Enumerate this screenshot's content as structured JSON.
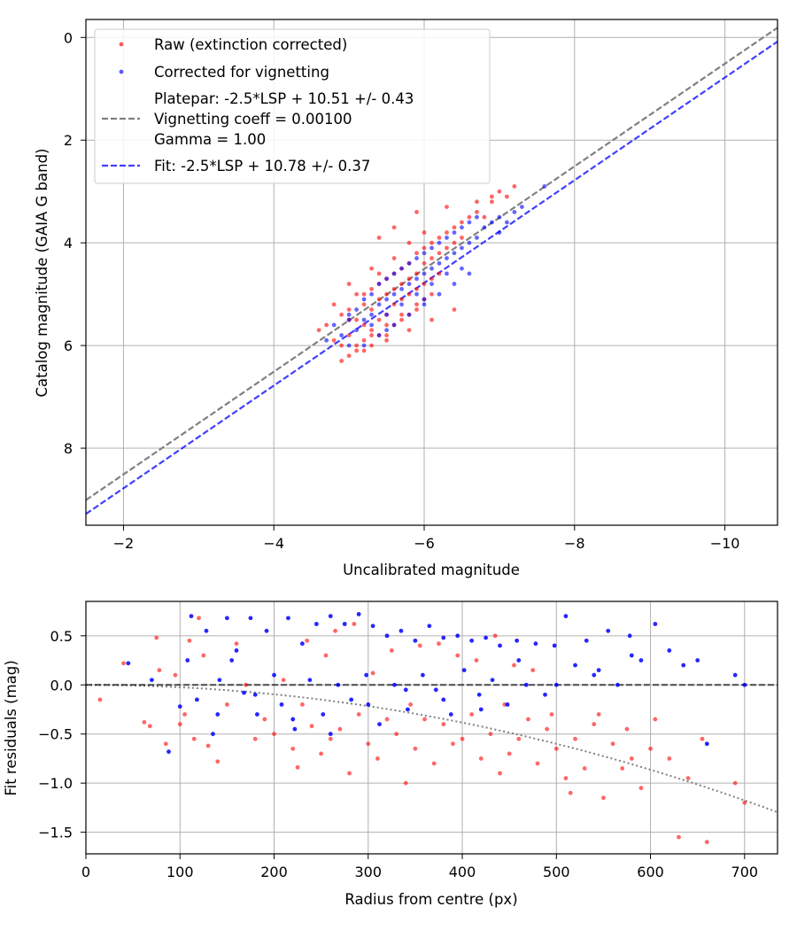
{
  "colors": {
    "raw": "#ff0000",
    "corrected": "#0000ff",
    "platepar_line": "#808080",
    "fit_line": "#0000ff",
    "grid": "#b0b0b0",
    "zero_line": "#000000",
    "model_curve": "#808080"
  },
  "chart_data": [
    {
      "type": "scatter",
      "xlabel": "Uncalibrated magnitude",
      "ylabel": "Catalog magnitude (GAIA G band)",
      "xlim": [
        -1.5,
        -10.7
      ],
      "ylim": [
        9.5,
        -0.35
      ],
      "x_inverted": true,
      "y_inverted": true,
      "grid": true,
      "legend_placement": "top-left",
      "xticks": [
        -2,
        -4,
        -6,
        -8,
        -10
      ],
      "xtick_labels": [
        "−2",
        "−4",
        "−6",
        "−8",
        "−10"
      ],
      "yticks": [
        0,
        2,
        4,
        6,
        8
      ],
      "ytick_labels": [
        "0",
        "2",
        "4",
        "6",
        "8"
      ],
      "legend": {
        "raw": "Raw (extinction corrected)",
        "corrected": "Corrected for vignetting",
        "platepar_line1": "Platepar: -2.5*LSP + 10.51 +/- 0.43",
        "platepar_line2": "Vignetting coeff = 0.00100",
        "platepar_line3": "Gamma = 1.00",
        "fit": "Fit: -2.5*LSP + 10.78 +/- 0.37"
      },
      "lines": [
        {
          "label": "Platepar",
          "slope": 1,
          "intercept": 10.51,
          "style": "dashed",
          "color": "#808080"
        },
        {
          "label": "Fit",
          "slope": 1,
          "intercept": 10.78,
          "style": "dashed",
          "color": "#0000ff"
        }
      ],
      "series": [
        {
          "name": "Raw (extinction corrected)",
          "color": "#ff0000",
          "x": [
            -4.6,
            -4.7,
            -4.8,
            -4.8,
            -4.9,
            -4.9,
            -5.0,
            -5.0,
            -5.0,
            -5.1,
            -5.1,
            -5.1,
            -5.2,
            -5.2,
            -5.2,
            -5.3,
            -5.3,
            -5.3,
            -5.3,
            -5.4,
            -5.4,
            -5.4,
            -5.4,
            -5.5,
            -5.5,
            -5.5,
            -5.5,
            -5.6,
            -5.6,
            -5.6,
            -5.6,
            -5.7,
            -5.7,
            -5.7,
            -5.7,
            -5.8,
            -5.8,
            -5.8,
            -5.8,
            -5.9,
            -5.9,
            -5.9,
            -5.9,
            -6.0,
            -6.0,
            -6.0,
            -6.0,
            -6.1,
            -6.1,
            -6.1,
            -6.2,
            -6.2,
            -6.2,
            -6.3,
            -6.3,
            -6.4,
            -6.4,
            -6.5,
            -6.5,
            -6.6,
            -6.7,
            -6.8,
            -6.9,
            -7.0,
            -7.1,
            -7.2,
            -5.0,
            -5.2,
            -5.4,
            -5.6,
            -5.8,
            -6.0,
            -5.1,
            -5.3,
            -5.5,
            -5.7,
            -5.9,
            -6.1,
            -4.9,
            -5.2,
            -5.5,
            -5.8,
            -6.1,
            -6.4,
            -5.9,
            -6.3,
            -6.7,
            -6.9,
            -5.4,
            -5.6,
            -5.0,
            -5.3
          ],
          "y": [
            5.7,
            5.6,
            5.2,
            5.9,
            5.4,
            6.0,
            5.3,
            5.8,
            6.2,
            5.0,
            5.5,
            6.1,
            5.2,
            5.6,
            5.9,
            4.9,
            5.3,
            5.7,
            6.0,
            4.8,
            5.1,
            5.5,
            5.8,
            4.7,
            5.0,
            5.4,
            5.8,
            4.6,
            4.9,
            5.2,
            5.6,
            4.5,
            4.8,
            5.1,
            5.5,
            4.4,
            4.7,
            5.0,
            5.4,
            4.2,
            4.6,
            4.9,
            5.3,
            4.1,
            4.4,
            4.8,
            5.1,
            4.0,
            4.3,
            4.7,
            3.9,
            4.2,
            4.6,
            3.8,
            4.1,
            3.7,
            4.0,
            3.6,
            3.9,
            3.5,
            3.4,
            3.5,
            3.2,
            3.0,
            3.1,
            2.9,
            5.5,
            5.0,
            4.6,
            4.3,
            4.0,
            3.8,
            6.0,
            5.8,
            5.6,
            5.4,
            5.2,
            5.0,
            6.3,
            6.1,
            5.9,
            5.7,
            5.5,
            5.3,
            3.4,
            3.3,
            3.2,
            3.1,
            3.9,
            3.7,
            4.8,
            4.5
          ]
        },
        {
          "name": "Corrected for vignetting",
          "color": "#0000ff",
          "x": [
            -4.7,
            -4.8,
            -4.9,
            -5.0,
            -5.0,
            -5.1,
            -5.1,
            -5.2,
            -5.2,
            -5.3,
            -5.3,
            -5.4,
            -5.4,
            -5.5,
            -5.5,
            -5.6,
            -5.6,
            -5.7,
            -5.7,
            -5.8,
            -5.8,
            -5.9,
            -5.9,
            -6.0,
            -6.0,
            -6.1,
            -6.1,
            -6.2,
            -6.2,
            -6.3,
            -6.3,
            -6.4,
            -6.4,
            -6.5,
            -6.5,
            -6.6,
            -6.6,
            -6.7,
            -6.7,
            -6.8,
            -6.9,
            -7.0,
            -7.1,
            -7.2,
            -7.3,
            -7.6,
            -5.3,
            -5.5,
            -5.7,
            -5.9,
            -6.1,
            -6.3,
            -5.2,
            -5.4,
            -5.6,
            -5.8,
            -6.0,
            -6.2,
            -6.4,
            -6.6,
            -5.0,
            -5.5,
            -6.0,
            -6.5,
            -7.0
          ],
          "y": [
            5.9,
            5.6,
            5.8,
            5.4,
            6.0,
            5.3,
            5.7,
            5.1,
            5.5,
            5.0,
            5.4,
            4.8,
            5.2,
            4.7,
            5.1,
            4.6,
            5.0,
            4.5,
            4.9,
            4.4,
            4.8,
            4.3,
            4.7,
            4.2,
            4.6,
            4.1,
            4.5,
            4.0,
            4.4,
            3.9,
            4.3,
            3.8,
            4.2,
            3.7,
            4.1,
            3.6,
            4.0,
            3.5,
            3.9,
            3.7,
            3.6,
            3.5,
            3.6,
            3.4,
            3.3,
            2.9,
            5.6,
            5.4,
            5.2,
            5.0,
            4.8,
            4.6,
            6.0,
            5.8,
            5.6,
            5.4,
            5.2,
            5.0,
            4.8,
            4.6,
            5.5,
            5.7,
            5.1,
            4.5,
            3.8
          ]
        }
      ]
    },
    {
      "type": "scatter",
      "xlabel": "Radius from centre (px)",
      "ylabel": "Fit residuals (mag)",
      "xlim": [
        0,
        735
      ],
      "ylim": [
        -1.72,
        0.85
      ],
      "grid": true,
      "xticks": [
        0,
        100,
        200,
        300,
        400,
        500,
        600,
        700
      ],
      "xtick_labels": [
        "0",
        "100",
        "200",
        "300",
        "400",
        "500",
        "600",
        "700"
      ],
      "yticks": [
        0.5,
        0.0,
        -0.5,
        -1.0,
        -1.5
      ],
      "ytick_labels": [
        "0.5",
        "0.0",
        "−0.5",
        "−1.0",
        "−1.5"
      ],
      "zero_line": {
        "y": 0,
        "style": "dashed",
        "color": "#000000"
      },
      "model_curve": {
        "style": "dotted",
        "color": "#808080",
        "coeff": 0.001,
        "gamma": 1.0,
        "x_range": [
          0,
          735
        ]
      },
      "series": [
        {
          "name": "Raw (extinction corrected)",
          "color": "#ff0000",
          "x": [
            15,
            40,
            62,
            68,
            75,
            78,
            85,
            95,
            100,
            105,
            110,
            115,
            120,
            125,
            130,
            140,
            150,
            160,
            170,
            180,
            190,
            200,
            210,
            220,
            225,
            230,
            240,
            250,
            255,
            260,
            270,
            280,
            290,
            300,
            305,
            310,
            320,
            330,
            340,
            345,
            350,
            360,
            370,
            380,
            390,
            400,
            410,
            420,
            430,
            440,
            445,
            450,
            460,
            470,
            480,
            490,
            500,
            510,
            520,
            530,
            540,
            550,
            560,
            570,
            580,
            590,
            600,
            620,
            630,
            640,
            660,
            690,
            700,
            235,
            265,
            285,
            325,
            355,
            375,
            395,
            415,
            435,
            455,
            475,
            495,
            515,
            545,
            575,
            605,
            655
          ],
          "y": [
            -0.15,
            0.22,
            -0.38,
            -0.42,
            0.48,
            0.15,
            -0.6,
            0.1,
            -0.4,
            -0.3,
            0.45,
            -0.55,
            0.68,
            0.3,
            -0.62,
            -0.78,
            -0.2,
            0.42,
            0.0,
            -0.55,
            -0.35,
            -0.5,
            0.05,
            -0.65,
            -0.84,
            -0.2,
            -0.42,
            -0.7,
            0.3,
            -0.55,
            -0.45,
            -0.9,
            -0.3,
            -0.6,
            0.12,
            -0.75,
            -0.35,
            -0.5,
            -1.0,
            -0.2,
            -0.65,
            -0.35,
            -0.8,
            -0.4,
            -0.6,
            -0.55,
            -0.3,
            -0.75,
            -0.5,
            -0.9,
            -0.2,
            -0.7,
            -0.55,
            -0.35,
            -0.8,
            -0.45,
            -0.65,
            -0.95,
            -0.55,
            -0.85,
            -0.4,
            -1.15,
            -0.6,
            -0.85,
            -0.75,
            -1.05,
            -0.65,
            -0.75,
            -1.55,
            -0.95,
            -1.6,
            -1.0,
            -1.2,
            0.45,
            0.55,
            0.62,
            0.35,
            0.4,
            0.42,
            0.3,
            0.25,
            0.5,
            0.2,
            0.15,
            -0.3,
            -1.1,
            -0.3,
            -0.45,
            -0.35,
            -0.55
          ]
        },
        {
          "name": "Corrected for vignetting",
          "color": "#0000ff",
          "x": [
            45,
            70,
            88,
            100,
            108,
            112,
            118,
            128,
            135,
            142,
            150,
            155,
            160,
            168,
            175,
            182,
            192,
            200,
            208,
            215,
            222,
            230,
            238,
            245,
            252,
            260,
            268,
            275,
            282,
            290,
            298,
            305,
            312,
            320,
            328,
            335,
            342,
            350,
            358,
            365,
            372,
            380,
            388,
            395,
            402,
            410,
            418,
            425,
            432,
            440,
            448,
            458,
            468,
            478,
            488,
            498,
            510,
            520,
            532,
            545,
            555,
            565,
            578,
            590,
            605,
            620,
            635,
            650,
            660,
            690,
            700,
            140,
            180,
            220,
            260,
            300,
            340,
            380,
            420,
            460,
            500,
            540,
            580
          ],
          "y": [
            0.22,
            0.05,
            -0.68,
            -0.22,
            0.25,
            0.7,
            -0.15,
            0.55,
            -0.5,
            0.05,
            0.68,
            0.25,
            0.35,
            -0.08,
            0.68,
            -0.3,
            0.55,
            0.1,
            -0.2,
            0.68,
            -0.45,
            0.42,
            0.05,
            0.62,
            -0.3,
            0.7,
            0.0,
            0.62,
            -0.15,
            0.72,
            0.1,
            0.6,
            -0.4,
            0.5,
            0.0,
            0.55,
            -0.25,
            0.45,
            0.1,
            0.6,
            -0.05,
            0.48,
            -0.3,
            0.5,
            0.15,
            0.45,
            -0.1,
            0.48,
            0.05,
            0.4,
            -0.2,
            0.45,
            0.0,
            0.42,
            -0.1,
            0.4,
            0.7,
            0.2,
            0.45,
            0.15,
            0.55,
            0.0,
            0.5,
            0.25,
            0.62,
            0.35,
            0.2,
            0.25,
            -0.6,
            0.1,
            0.0,
            -0.3,
            -0.1,
            -0.35,
            -0.5,
            -0.2,
            -0.05,
            -0.15,
            -0.25,
            0.25,
            0.0,
            0.1,
            0.3
          ]
        }
      ]
    }
  ]
}
